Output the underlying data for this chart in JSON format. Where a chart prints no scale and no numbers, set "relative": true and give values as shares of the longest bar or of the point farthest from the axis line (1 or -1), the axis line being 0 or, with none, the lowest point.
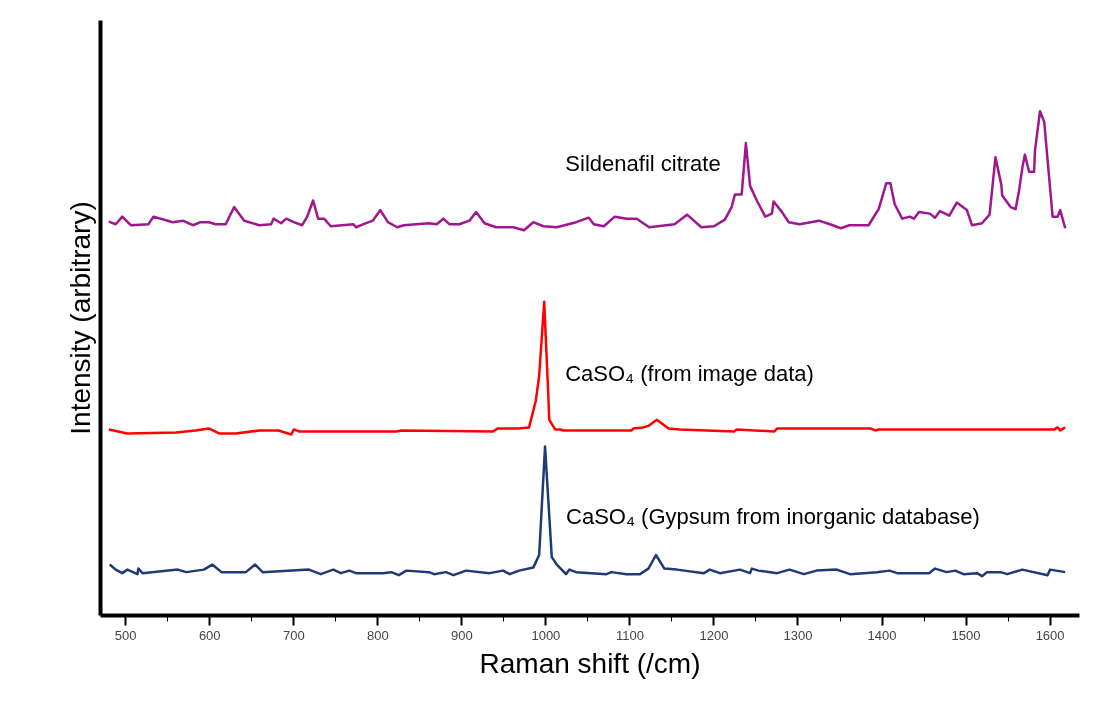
{
  "chart_data": {
    "type": "line",
    "relative": true,
    "xlabel": "Raman shift (/cm)",
    "ylabel": "Intensity (arbitrary)",
    "tick_labels": "x",
    "xlim": [
      470,
      1635
    ],
    "xticks": [
      500,
      {
        "value": 550,
        "label": null
      },
      600,
      {
        "value": 650,
        "label": null
      },
      700,
      {
        "value": 750,
        "label": null
      },
      800,
      {
        "value": 850,
        "label": null
      },
      900,
      {
        "value": 950,
        "label": null
      },
      1000,
      {
        "value": 1050,
        "label": null
      },
      1100,
      {
        "value": 1150,
        "label": null
      },
      1200,
      {
        "value": 1250,
        "label": null
      },
      1300,
      {
        "value": 1350,
        "label": null
      },
      1400,
      {
        "value": 1450,
        "label": null
      },
      1500,
      {
        "value": 1550,
        "label": null
      },
      1600
    ],
    "series": [
      {
        "name": "Sildenafil citrate",
        "color": "#a0168f",
        "x": [
          480,
          488,
          496,
          506,
          527,
          533,
          550,
          556,
          568,
          580,
          589,
          599,
          607,
          619,
          629,
          641,
          659,
          673,
          676,
          685,
          691,
          700,
          710,
          716,
          723,
          729,
          736,
          744,
          771,
          774,
          783,
          794,
          803,
          812,
          823,
          831,
          861,
          870,
          878,
          885,
          897,
          909,
          917,
          927,
          941,
          961,
          974,
          985,
          997,
          1013,
          1036,
          1051,
          1057,
          1069,
          1082,
          1096,
          1108,
          1123,
          1153,
          1168,
          1185,
          1200,
          1213,
          1221,
          1225,
          1233,
          1238,
          1243,
          1251,
          1261,
          1269,
          1271,
          1281,
          1289,
          1302,
          1325,
          1338,
          1351,
          1361,
          1384,
          1396,
          1405,
          1410,
          1415,
          1424,
          1433,
          1438,
          1444,
          1457,
          1463,
          1469,
          1480,
          1489,
          1501,
          1507,
          1519,
          1528,
          1535,
          1542,
          1543,
          1553,
          1559,
          1563,
          1567,
          1570,
          1575,
          1581,
          1582,
          1588,
          1593,
          1603,
          1609,
          1612,
          1618
        ],
        "values": [
          0.781,
          0.776,
          0.791,
          0.774,
          0.776,
          0.791,
          0.783,
          0.78,
          0.783,
          0.774,
          0.78,
          0.78,
          0.776,
          0.776,
          0.81,
          0.783,
          0.774,
          0.776,
          0.787,
          0.778,
          0.787,
          0.78,
          0.774,
          0.791,
          0.823,
          0.787,
          0.787,
          0.772,
          0.776,
          0.77,
          0.776,
          0.783,
          0.804,
          0.78,
          0.77,
          0.774,
          0.778,
          0.776,
          0.787,
          0.776,
          0.776,
          0.783,
          0.8,
          0.778,
          0.77,
          0.77,
          0.764,
          0.78,
          0.772,
          0.77,
          0.78,
          0.789,
          0.776,
          0.772,
          0.791,
          0.787,
          0.787,
          0.77,
          0.776,
          0.795,
          0.77,
          0.772,
          0.785,
          0.81,
          0.835,
          0.835,
          0.937,
          0.852,
          0.823,
          0.791,
          0.797,
          0.821,
          0.8,
          0.78,
          0.776,
          0.783,
          0.776,
          0.768,
          0.774,
          0.774,
          0.806,
          0.857,
          0.857,
          0.816,
          0.787,
          0.791,
          0.787,
          0.8,
          0.797,
          0.789,
          0.802,
          0.793,
          0.819,
          0.804,
          0.774,
          0.778,
          0.795,
          0.909,
          0.854,
          0.833,
          0.81,
          0.806,
          0.842,
          0.888,
          0.914,
          0.88,
          0.88,
          0.922,
          1.0,
          0.979,
          0.791,
          0.791,
          0.804,
          0.768
        ]
      },
      {
        "name": "CaSO₄ (from image data)",
        "color": "#ff0000",
        "x": [
          480,
          502,
          560,
          583,
          599,
          611,
          631,
          659,
          682,
          697,
          700,
          706,
          822,
          828,
          937,
          943,
          967,
          980,
          988,
          992,
          998,
          1003,
          1004,
          1011,
          1017,
          1021,
          1036,
          1102,
          1104,
          1116,
          1122,
          1132,
          1146,
          1159,
          1224,
          1227,
          1272,
          1275,
          1386,
          1392,
          1396,
          1605,
          1609,
          1612,
          1618
        ],
        "values": [
          0.369,
          0.361,
          0.363,
          0.367,
          0.371,
          0.361,
          0.361,
          0.367,
          0.367,
          0.359,
          0.369,
          0.365,
          0.365,
          0.367,
          0.365,
          0.371,
          0.371,
          0.373,
          0.426,
          0.475,
          0.622,
          0.432,
          0.388,
          0.369,
          0.369,
          0.367,
          0.367,
          0.367,
          0.371,
          0.373,
          0.376,
          0.388,
          0.371,
          0.369,
          0.365,
          0.369,
          0.365,
          0.371,
          0.371,
          0.367,
          0.369,
          0.369,
          0.373,
          0.367,
          0.373
        ]
      },
      {
        "name": "CaSO₄ (Gypsum from inorganic database)",
        "color": "#1f3a75",
        "x": [
          481,
          488,
          496,
          502,
          514,
          515,
          520,
          562,
          572,
          593,
          603,
          614,
          643,
          654,
          663,
          718,
          732,
          747,
          756,
          766,
          774,
          806,
          816,
          825,
          834,
          861,
          867,
          881,
          890,
          905,
          933,
          949,
          957,
          968,
          985,
          992,
          999,
          1007,
          1013,
          1024,
          1028,
          1036,
          1072,
          1078,
          1096,
          1112,
          1122,
          1131,
          1141,
          1156,
          1188,
          1195,
          1207,
          1231,
          1243,
          1245,
          1253,
          1275,
          1290,
          1307,
          1322,
          1346,
          1362,
          1394,
          1409,
          1418,
          1456,
          1463,
          1477,
          1487,
          1497,
          1513,
          1519,
          1525,
          1541,
          1549,
          1567,
          1597,
          1600,
          1618
        ],
        "values": [
          0.101,
          0.091,
          0.084,
          0.091,
          0.082,
          0.093,
          0.084,
          0.091,
          0.086,
          0.091,
          0.101,
          0.086,
          0.086,
          0.101,
          0.086,
          0.091,
          0.082,
          0.091,
          0.084,
          0.089,
          0.084,
          0.084,
          0.086,
          0.08,
          0.089,
          0.086,
          0.082,
          0.086,
          0.08,
          0.089,
          0.084,
          0.089,
          0.082,
          0.089,
          0.095,
          0.12,
          0.335,
          0.116,
          0.101,
          0.082,
          0.091,
          0.086,
          0.082,
          0.086,
          0.082,
          0.082,
          0.093,
          0.12,
          0.093,
          0.091,
          0.084,
          0.091,
          0.084,
          0.091,
          0.084,
          0.093,
          0.089,
          0.084,
          0.091,
          0.082,
          0.089,
          0.091,
          0.082,
          0.086,
          0.089,
          0.084,
          0.084,
          0.093,
          0.086,
          0.089,
          0.082,
          0.084,
          0.078,
          0.086,
          0.086,
          0.082,
          0.091,
          0.08,
          0.091,
          0.086
        ]
      }
    ]
  }
}
